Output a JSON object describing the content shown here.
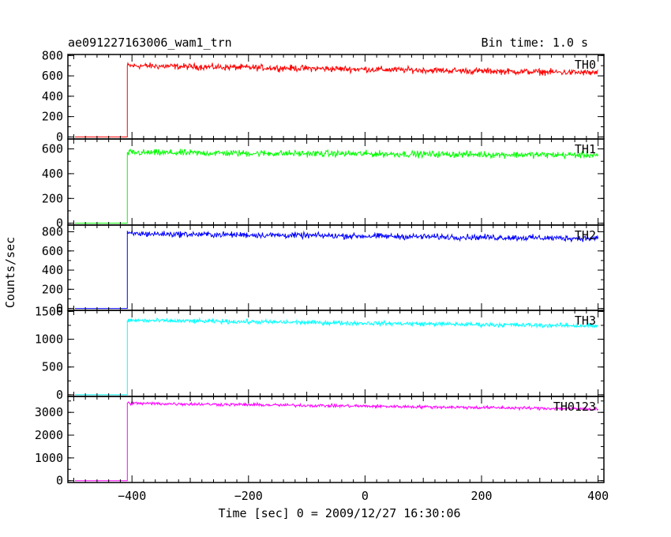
{
  "header": {
    "title": "ae091227163006_wam1_trn",
    "bin_time": "Bin time: 1.0 s"
  },
  "chart_data": {
    "type": "line",
    "title": "ae091227163006_wam1_trn",
    "xlabel": "Time [sec] 0 = 2009/12/27 16:30:06",
    "ylabel": "Counts/sec",
    "xlim": [
      -510,
      410
    ],
    "x_ticks": [
      -400,
      -200,
      0,
      200,
      400
    ],
    "x_tick_labels": [
      "−400",
      "−200",
      "0",
      "200",
      "400"
    ],
    "onset_time": -408,
    "series": [
      {
        "name": "TH0",
        "color": "#ff0000",
        "ylim": [
          -20,
          810
        ],
        "y_ticks": [
          0,
          200,
          400,
          600,
          800
        ],
        "pre_level": 0,
        "level_start": 700,
        "level_end": 630,
        "noise": 35,
        "peak_to_peak_hint": "about 580-760"
      },
      {
        "name": "TH1",
        "color": "#00ff00",
        "ylim": [
          -15,
          680
        ],
        "y_ticks": [
          0,
          200,
          400,
          600
        ],
        "pre_level": 0,
        "level_start": 570,
        "level_end": 550,
        "noise": 30,
        "peak_to_peak_hint": "about 500-650"
      },
      {
        "name": "TH2",
        "color": "#0000ff",
        "ylim": [
          -20,
          870
        ],
        "y_ticks": [
          0,
          200,
          400,
          600,
          800
        ],
        "pre_level": 0,
        "level_start": 780,
        "level_end": 730,
        "noise": 35,
        "peak_to_peak_hint": "about 680-880"
      },
      {
        "name": "TH3",
        "color": "#00ffff",
        "ylim": [
          -30,
          1520
        ],
        "y_ticks": [
          0,
          500,
          1000,
          1500
        ],
        "pre_level": 0,
        "level_start": 1340,
        "level_end": 1240,
        "noise": 45,
        "peak_to_peak_hint": "about 1150-1450"
      },
      {
        "name": "TH0123",
        "color": "#ff00ff",
        "ylim": [
          -80,
          3700
        ],
        "y_ticks": [
          0,
          1000,
          2000,
          3000
        ],
        "pre_level": 0,
        "level_start": 3400,
        "level_end": 3150,
        "noise": 80,
        "peak_to_peak_hint": "about 2950-3550"
      }
    ]
  }
}
